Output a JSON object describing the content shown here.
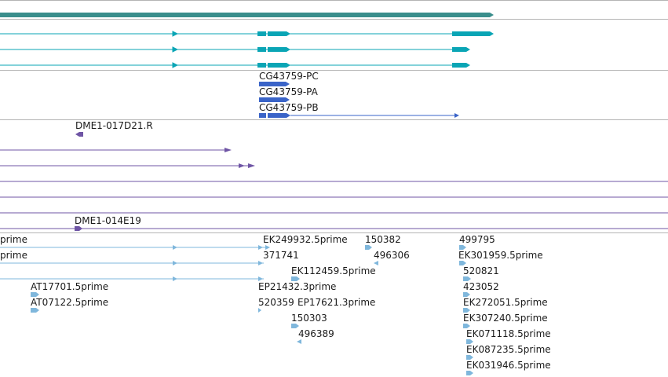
{
  "colors": {
    "separator": "#b4b4b4",
    "gene_band": "#3a8e8c",
    "transcript": "#0aa5b5",
    "cds": "#3a64c8",
    "clone": "#6f55a5",
    "est": "#7fb7dc"
  },
  "gene_tracks": [
    {
      "id": "g1"
    },
    {
      "id": "g2"
    },
    {
      "id": "g3"
    }
  ],
  "cds_labels": [
    "CG43759-PC",
    "CG43759-PA",
    "CG43759-PB"
  ],
  "clone_labels": {
    "top": "DME1-017D21.R",
    "bottom": "DME1-014E19"
  },
  "est_labels": [
    "prime",
    "prime",
    "AT17701.5prime",
    "AT07122.5prime",
    "EK249932.5prime",
    "371741",
    "EK112459.5prime",
    "EP21432.3prime",
    "520359",
    "EP17621.3prime",
    "150303",
    "496389",
    "150382",
    "496306",
    "499795",
    "EK301959.5prime",
    "520821",
    "423052",
    "EK272051.5prime",
    "EK307240.5prime",
    "EK071118.5prime",
    "EK087235.5prime",
    "EK031946.5prime"
  ]
}
